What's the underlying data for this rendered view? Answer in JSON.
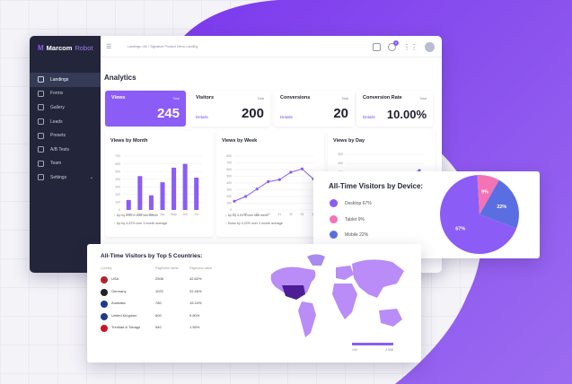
{
  "app": {
    "brand_mark": "M",
    "brand_name": "Marcom",
    "brand_suffix": "Robot",
    "breadcrumb": "Landings / AK / Signature Product Demo Landing",
    "notification_count": "2"
  },
  "sidebar": {
    "items": [
      {
        "label": "Landings",
        "icon": "grid-icon",
        "active": true
      },
      {
        "label": "Forms",
        "icon": "form-icon"
      },
      {
        "label": "Gallery",
        "icon": "image-icon"
      },
      {
        "label": "Leads",
        "icon": "leads-icon"
      },
      {
        "label": "Presets",
        "icon": "preset-icon"
      },
      {
        "label": "A/B Tests",
        "icon": "ab-test-icon"
      },
      {
        "label": "Team",
        "icon": "team-icon"
      },
      {
        "label": "Settings",
        "icon": "gear-icon",
        "has_chevron": true
      }
    ]
  },
  "page": {
    "title": "Analytics"
  },
  "stats": [
    {
      "label": "Views",
      "total_label": "Total",
      "value": "245",
      "details": ""
    },
    {
      "label": "Visitors",
      "total_label": "Total",
      "value": "200",
      "details": "Details"
    },
    {
      "label": "Conversions",
      "total_label": "Total",
      "value": "20",
      "details": "Details"
    },
    {
      "label": "Conversion Rate",
      "total_label": "Total",
      "value": "10.00%",
      "details": "Details"
    }
  ],
  "cards": {
    "month": {
      "title": "Views by Month",
      "note1": "Up by 5.00% over last month",
      "note2": "Up by 4.22% over 3 month average"
    },
    "week": {
      "title": "Views by Week",
      "note1": "Up by 5.00% over last week",
      "note2": "Down by 4.22% over 3 month average"
    },
    "day": {
      "title": "Views by Day"
    }
  },
  "device": {
    "title": "All-Time Visitors by Device:",
    "legend": [
      {
        "label": "Desktop 67%",
        "color": "#8b5cf6"
      },
      {
        "label": "Tablet 9%",
        "color": "#f472b6"
      },
      {
        "label": "Mobile 22%",
        "color": "#5b6ee1"
      }
    ],
    "slice_labels": [
      "67%",
      "9%",
      "22%"
    ]
  },
  "countries": {
    "title": "All-Time Visitors by Top 5 Countries:",
    "headers": [
      "Country",
      "Pageview name",
      "Pageview value"
    ],
    "rows": [
      {
        "name": "USA",
        "count": "2508",
        "pct": "42.82%",
        "flag": "usa"
      },
      {
        "name": "Germany",
        "count": "1022",
        "pct": "22.45%",
        "flag": "germany"
      },
      {
        "name": "Australia",
        "count": "780",
        "pct": "15.24%",
        "flag": "australia"
      },
      {
        "name": "United Kingdom",
        "count": "600",
        "pct": "9.80%",
        "flag": "uk"
      },
      {
        "name": "Trinidad & Tobago",
        "count": "540",
        "pct": "1.55%",
        "flag": "trinidad"
      }
    ],
    "scale_min": "100",
    "scale_max": "2,508"
  },
  "chart_data": [
    {
      "type": "bar",
      "title": "Views by Month",
      "categories": [
        "Jan",
        "Feb",
        "Mar",
        "Apr",
        "May",
        "Jun",
        "Jul"
      ],
      "values": [
        130,
        440,
        190,
        360,
        550,
        600,
        420
      ],
      "yticks": [
        "700",
        "600",
        "500",
        "400",
        "300",
        "200",
        "100",
        "0"
      ],
      "ylim": [
        0,
        700
      ],
      "color": "#8b5cf6"
    },
    {
      "type": "line",
      "title": "Views by Week",
      "categories": [
        "27",
        "28",
        "29",
        "30",
        "31",
        "32",
        "33",
        "34"
      ],
      "values": [
        130,
        200,
        310,
        420,
        450,
        560,
        610,
        460
      ],
      "yticks": [
        "800",
        "700",
        "600",
        "500",
        "400",
        "300",
        "200",
        "100",
        "0"
      ],
      "ylim": [
        0,
        800
      ],
      "color": "#8b5cf6"
    },
    {
      "type": "line",
      "title": "Views by Day",
      "yticks": [
        "500",
        "450",
        "400",
        "350"
      ],
      "values": [
        340,
        380
      ],
      "ylim": [
        0,
        500
      ],
      "color": "#8b5cf6"
    },
    {
      "type": "pie",
      "title": "All-Time Visitors by Device:",
      "categories": [
        "Desktop",
        "Tablet",
        "Mobile"
      ],
      "values": [
        67,
        9,
        22
      ],
      "colors": [
        "#8b5cf6",
        "#f472b6",
        "#5b6ee1"
      ]
    }
  ]
}
